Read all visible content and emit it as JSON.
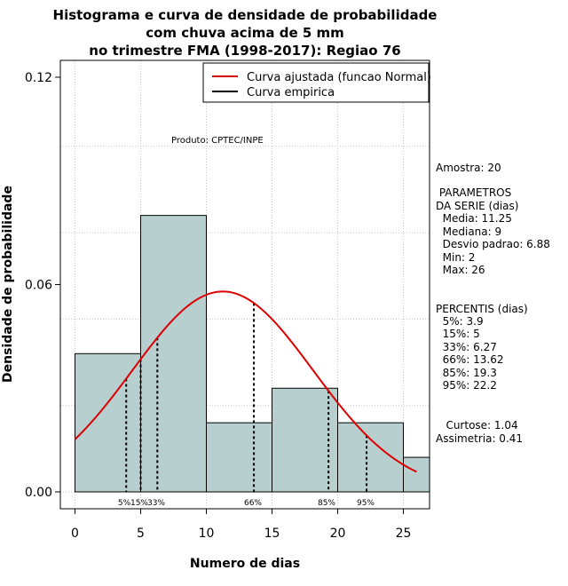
{
  "chart_data": {
    "type": "histogram",
    "title_lines": [
      "Histograma e curva de densidade de probabilidade",
      "com chuva acima de 5 mm",
      "no trimestre FMA (1998-2017): Regiao 76"
    ],
    "xlabel": "Numero de dias",
    "ylabel": "Densidade de probabilidade",
    "xlim": [
      -1,
      27
    ],
    "ylim": [
      0,
      0.12
    ],
    "x_ticks": [
      "0",
      "5",
      "10",
      "15",
      "20",
      "25"
    ],
    "x_tick_values": [
      0,
      5,
      10,
      15,
      20,
      25
    ],
    "y_ticks": [
      "0.00",
      "0.06",
      "0.12"
    ],
    "y_tick_values": [
      0.0,
      0.06,
      0.12
    ],
    "grid": true,
    "bins": [
      {
        "from": 0,
        "to": 5,
        "density": 0.04
      },
      {
        "from": 5,
        "to": 10,
        "density": 0.08
      },
      {
        "from": 10,
        "to": 15,
        "density": 0.02
      },
      {
        "from": 15,
        "to": 20,
        "density": 0.03
      },
      {
        "from": 20,
        "to": 25,
        "density": 0.02
      },
      {
        "from": 25,
        "to": 27,
        "density": 0.01
      }
    ],
    "normal_fit": {
      "mean": 11.25,
      "sd": 6.88,
      "x_from": 0,
      "x_to": 26,
      "color": "#dd0000"
    },
    "legend": [
      {
        "label": "Curva ajustada (funcao Normal)",
        "color": "#dd0000"
      },
      {
        "label": "Curva empirica",
        "color": "#000000"
      }
    ],
    "watermark": "Produto: CPTEC/INPE",
    "percentile_lines": [
      {
        "label": "5%",
        "x": 3.9
      },
      {
        "label": "15%",
        "x": 5
      },
      {
        "label": "33%",
        "x": 6.27
      },
      {
        "label": "66%",
        "x": 13.62
      },
      {
        "label": "85%",
        "x": 19.3
      },
      {
        "label": "95%",
        "x": 22.2
      }
    ],
    "bar_color": "#b7cfcf"
  },
  "side_panel": {
    "amostra": "Amostra: 20",
    "param_title_1": " PARAMETROS",
    "param_title_2": "DA SERIE (dias)",
    "media": "  Media: 11.25",
    "mediana": "  Mediana: 9",
    "desvio": "  Desvio padrao: 6.88",
    "min": "  Min: 2",
    "max": "  Max: 26",
    "percentis_title": "PERCENTIS (dias)",
    "p5": "  5%: 3.9",
    "p15": "  15%: 5",
    "p33": "  33%: 6.27",
    "p66": "  66%: 13.62",
    "p85": "  85%: 19.3",
    "p95": "  95%: 22.2",
    "curtose": "   Curtose: 1.04",
    "assimetria": "Assimetria: 0.41"
  }
}
